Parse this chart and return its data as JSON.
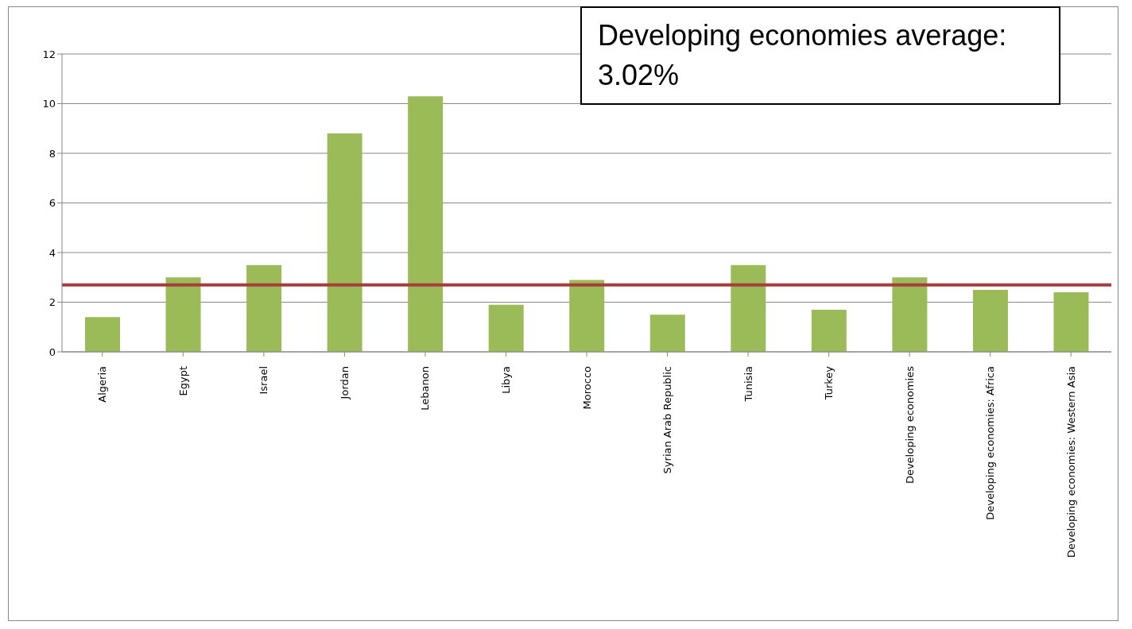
{
  "chart_data": {
    "type": "bar",
    "categories": [
      "Algeria",
      "Egypt",
      "Israel",
      "Jordan",
      "Lebanon",
      "Libya",
      "Morocco",
      "Syrian Arab Republic",
      "Tunisia",
      "Turkey",
      "Developing economies",
      "Developing economies: Africa",
      "Developing economies: Western Asia"
    ],
    "values": [
      1.4,
      3.0,
      3.5,
      8.8,
      10.3,
      1.9,
      2.9,
      1.5,
      3.5,
      1.7,
      3.0,
      2.5,
      2.4
    ],
    "color": "#9bbb59",
    "ylim": [
      0,
      12
    ],
    "yticks": [
      0,
      2,
      4,
      6,
      8,
      10,
      12
    ],
    "grid": "y",
    "ref_lines": [
      {
        "axis": "y",
        "value": 2.7,
        "color": "#a83c3c"
      }
    ],
    "annotations": [
      "Developing economies average: 3.02%"
    ]
  }
}
